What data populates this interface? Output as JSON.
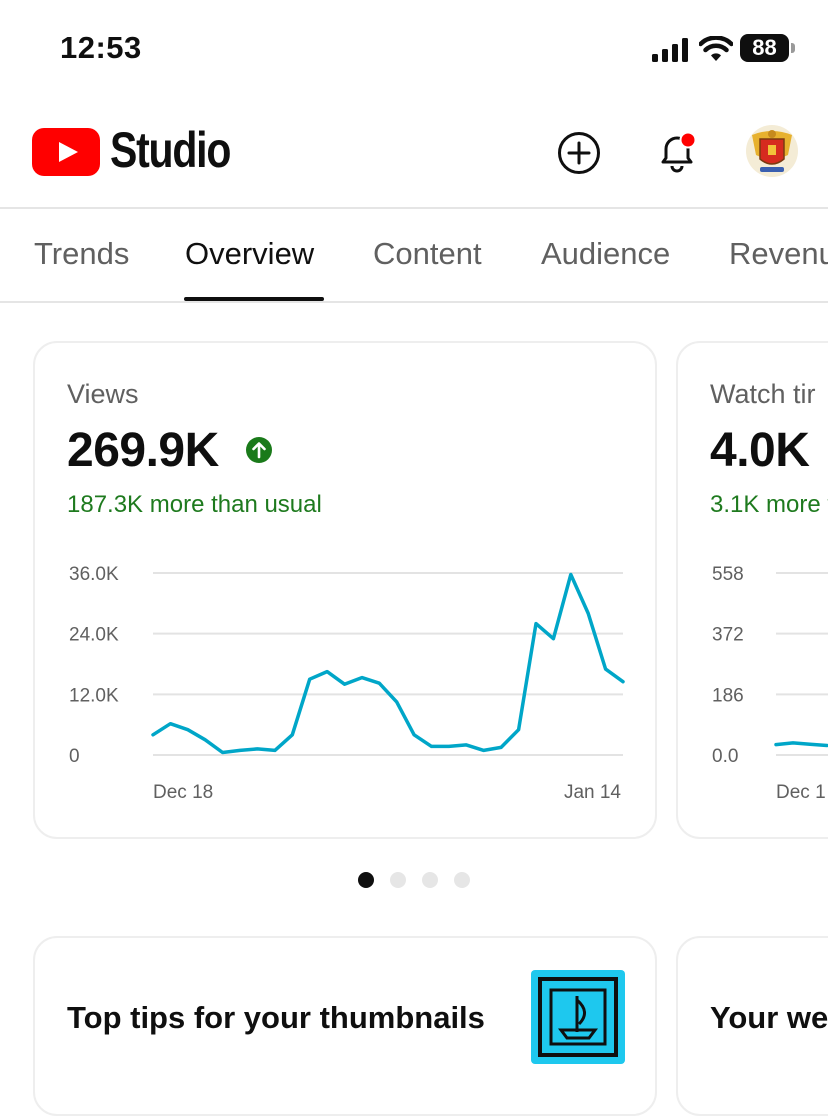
{
  "status_bar": {
    "time": "12:53",
    "battery": "88"
  },
  "header": {
    "app_name": "Studio",
    "brand_color": "#ff0000"
  },
  "tabs": [
    {
      "label": "Trends"
    },
    {
      "label": "Overview",
      "active": true
    },
    {
      "label": "Content"
    },
    {
      "label": "Audience"
    },
    {
      "label": "Revenu"
    }
  ],
  "cards": {
    "views": {
      "label": "Views",
      "value": "269.9K",
      "trend": "up",
      "delta": "187.3K more than usual"
    },
    "watch_time": {
      "label": "Watch tir",
      "value": "4.0K",
      "delta": "3.1K more t"
    }
  },
  "chart_data": [
    {
      "type": "line",
      "yticks": [
        "36.0K",
        "24.0K",
        "12.0K",
        "0"
      ],
      "xticks": [
        "Dec 18",
        "Jan 14"
      ],
      "ylim": [
        0,
        36000
      ],
      "color": "#00a6c8",
      "values": [
        4000,
        6200,
        5000,
        3000,
        500,
        900,
        1200,
        900,
        4000,
        15000,
        16500,
        14000,
        15300,
        14200,
        10500,
        4000,
        1700,
        1700,
        2000,
        900,
        1500,
        5000,
        26000,
        23000,
        35700,
        28000,
        17000,
        14500
      ]
    },
    {
      "type": "line",
      "yticks": [
        "558",
        "372",
        "186",
        "0.0"
      ],
      "xticks": [
        "Dec 1"
      ],
      "ylim": [
        0,
        558
      ],
      "color": "#00a6c8",
      "values": [
        32,
        37,
        33,
        29
      ]
    }
  ],
  "pagination": {
    "count": 4,
    "active": 0
  },
  "tips_card": {
    "title": "Top tips for your thumbnails",
    "accent": "#1ec8ee"
  },
  "weekly_card": {
    "title": "Your we"
  }
}
